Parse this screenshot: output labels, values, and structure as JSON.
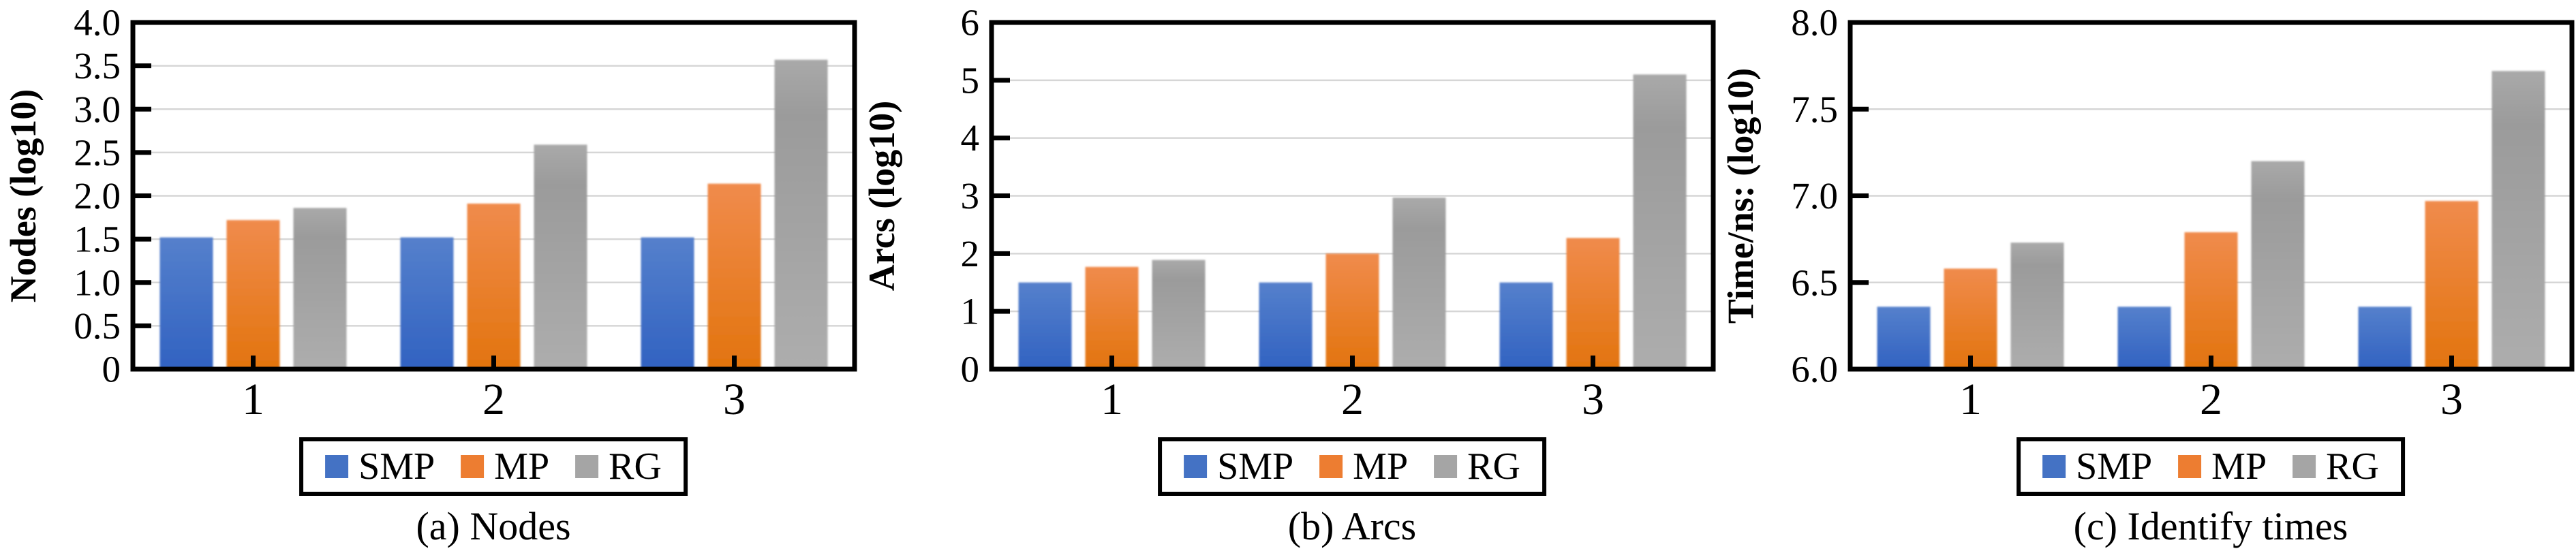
{
  "page": {
    "background": "#FFFFFF",
    "text_color": "#000000",
    "grid_color": "#D6D6D6",
    "axis_color": "#000000"
  },
  "legend": {
    "items": [
      {
        "label": "SMP",
        "color": "#4472C4",
        "color_top": "#5580CC",
        "color_bottom": "#3162C1"
      },
      {
        "label": "MP",
        "color": "#ED7D31",
        "color_top": "#F08B4C",
        "color_bottom": "#E2740E"
      },
      {
        "label": "RG",
        "color": "#A5A5A5",
        "color_top": "#A9A9A9",
        "color_mid": "#9B9B9B",
        "color_bottom": "#ADADAD"
      }
    ]
  },
  "chart_data": [
    {
      "type": "bar",
      "title": "(a) Nodes",
      "ylabel": "Nodes (log10)",
      "xlabel": "",
      "categories": [
        "1",
        "2",
        "3"
      ],
      "series": [
        {
          "name": "SMP",
          "values": [
            1.52,
            1.52,
            1.52
          ]
        },
        {
          "name": "MP",
          "values": [
            1.72,
            1.91,
            2.14
          ]
        },
        {
          "name": "RG",
          "values": [
            1.86,
            2.59,
            3.57
          ]
        }
      ],
      "ylim": [
        0,
        4
      ],
      "ytick_step": 0.5,
      "ytick_labels": [
        "0",
        "0.5",
        "1.0",
        "1.5",
        "2.0",
        "2.5",
        "3.0",
        "3.5",
        "4.0"
      ],
      "grid": true,
      "legend_position": "bottom"
    },
    {
      "type": "bar",
      "title": "(b) Arcs",
      "ylabel": "Arcs (log10)",
      "xlabel": "",
      "categories": [
        "1",
        "2",
        "3"
      ],
      "series": [
        {
          "name": "SMP",
          "values": [
            1.5,
            1.5,
            1.5
          ]
        },
        {
          "name": "MP",
          "values": [
            1.77,
            2.0,
            2.27
          ]
        },
        {
          "name": "RG",
          "values": [
            1.89,
            2.97,
            5.1
          ]
        }
      ],
      "ylim": [
        0,
        6
      ],
      "ytick_step": 1,
      "ytick_labels": [
        "0",
        "1",
        "2",
        "3",
        "4",
        "5",
        "6"
      ],
      "grid": true,
      "legend_position": "bottom"
    },
    {
      "type": "bar",
      "title": "(c) Identify times",
      "ylabel": "Time/ns: (log10)",
      "xlabel": "",
      "categories": [
        "1",
        "2",
        "3"
      ],
      "series": [
        {
          "name": "SMP",
          "values": [
            6.36,
            6.36,
            6.36
          ]
        },
        {
          "name": "MP",
          "values": [
            6.58,
            6.79,
            6.97
          ]
        },
        {
          "name": "RG",
          "values": [
            6.73,
            7.2,
            7.72
          ]
        }
      ],
      "ylim": [
        6,
        8
      ],
      "ytick_step": 0.5,
      "ytick_labels": [
        "6.0",
        "6.5",
        "7.0",
        "7.5",
        "8.0"
      ],
      "grid": true,
      "legend_position": "bottom"
    }
  ]
}
